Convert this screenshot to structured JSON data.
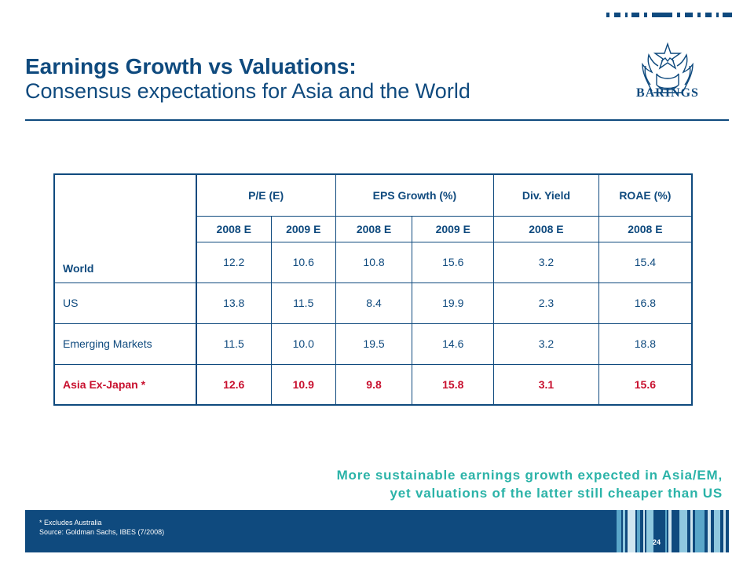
{
  "title": {
    "main": "Earnings Growth vs Valuations:",
    "sub": "Consensus expectations for Asia and the World"
  },
  "logo": {
    "text": "BARINGS"
  },
  "table": {
    "first_col_label": "World",
    "group_headers": [
      "P/E (E)",
      "EPS Growth (%)",
      "Div. Yield",
      "ROAE (%)"
    ],
    "sub_headers": [
      "2008 E",
      "2009 E",
      "2008 E",
      "2009 E",
      "2008 E",
      "2008 E"
    ],
    "rows": [
      {
        "label": "",
        "values": [
          "12.2",
          "10.6",
          "10.8",
          "15.6",
          "3.2",
          "15.4"
        ]
      },
      {
        "label": "US",
        "values": [
          "13.8",
          "11.5",
          "8.4",
          "19.9",
          "2.3",
          "16.8"
        ]
      },
      {
        "label": "Emerging Markets",
        "values": [
          "11.5",
          "10.0",
          "19.5",
          "14.6",
          "3.2",
          "18.8"
        ]
      },
      {
        "label": "Asia Ex-Japan *",
        "values": [
          "12.6",
          "10.9",
          "9.8",
          "15.8",
          "3.1",
          "15.6"
        ]
      }
    ]
  },
  "callout": {
    "line1": "More sustainable earnings growth expected in Asia/EM,",
    "line2": "yet valuations of the latter still cheaper than US"
  },
  "footer": {
    "note1": "* Excludes Australia",
    "note2": "Source: Goldman Sachs, IBES (7/2008)",
    "page_number": "24"
  },
  "colors": {
    "brand_blue": "#0f4a7e",
    "highlight_red": "#c8102e",
    "callout_teal": "#2bb3a8"
  }
}
